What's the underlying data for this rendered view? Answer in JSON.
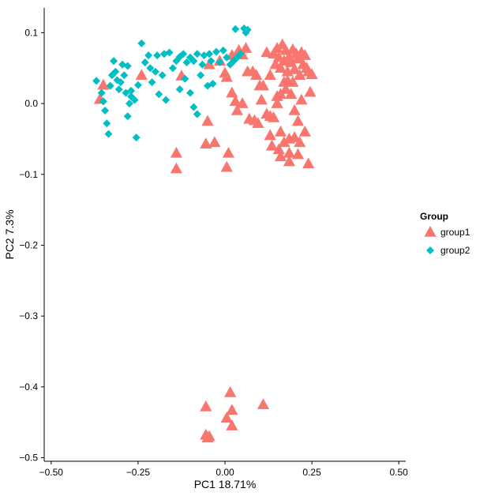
{
  "chart_data": {
    "type": "scatter",
    "xlabel": "PC1 18.71%",
    "ylabel": "PC2 7.3%",
    "xlim": [
      -0.52,
      0.52
    ],
    "ylim": [
      -0.505,
      0.135
    ],
    "x_ticks": [
      -0.5,
      -0.25,
      0.0,
      0.25,
      0.5
    ],
    "x_tick_labels": [
      "−0.50",
      "−0.25",
      "0.00",
      "0.25",
      "0.50"
    ],
    "y_ticks": [
      0.1,
      0.0,
      -0.1,
      -0.2,
      -0.3,
      -0.4,
      -0.5
    ],
    "y_tick_labels": [
      "0.1",
      "0.0",
      "−0.1",
      "−0.2",
      "−0.3",
      "−0.4",
      "−0.5"
    ],
    "grid": false,
    "legend": {
      "title": "Group",
      "position": "right",
      "entries": [
        {
          "label": "group1",
          "color": "#F8766D",
          "shape": "triangle"
        },
        {
          "label": "group2",
          "color": "#00BFC4",
          "shape": "diamond"
        }
      ]
    },
    "series": [
      {
        "name": "group1",
        "color": "#F8766D",
        "shape": "triangle",
        "points": [
          [
            -0.36,
            0.006
          ],
          [
            -0.35,
            0.026
          ],
          [
            -0.24,
            0.04
          ],
          [
            -0.125,
            0.039
          ],
          [
            -0.045,
            0.055
          ],
          [
            -0.015,
            0.06
          ],
          [
            0.0,
            0.043
          ],
          [
            0.005,
            0.037
          ],
          [
            0.02,
            0.068
          ],
          [
            0.04,
            0.075
          ],
          [
            0.05,
            0.069
          ],
          [
            0.06,
            0.078
          ],
          [
            0.065,
            0.045
          ],
          [
            0.08,
            0.045
          ],
          [
            0.09,
            0.04
          ],
          [
            0.1,
            0.025
          ],
          [
            0.105,
            0.005
          ],
          [
            0.11,
            0.025
          ],
          [
            0.12,
            0.072
          ],
          [
            0.13,
            0.04
          ],
          [
            0.14,
            0.07
          ],
          [
            0.145,
            0.055
          ],
          [
            0.15,
            0.078
          ],
          [
            0.155,
            0.065
          ],
          [
            0.16,
            0.05
          ],
          [
            0.165,
            0.083
          ],
          [
            0.17,
            0.06
          ],
          [
            0.175,
            0.075
          ],
          [
            0.18,
            0.045
          ],
          [
            0.185,
            0.066
          ],
          [
            0.19,
            0.058
          ],
          [
            0.195,
            0.076
          ],
          [
            0.2,
            0.048
          ],
          [
            0.205,
            0.07
          ],
          [
            0.21,
            0.063
          ],
          [
            0.215,
            0.04
          ],
          [
            0.22,
            0.072
          ],
          [
            0.225,
            0.055
          ],
          [
            0.23,
            0.068
          ],
          [
            0.235,
            0.05
          ],
          [
            0.24,
            0.045
          ],
          [
            0.25,
            0.041
          ],
          [
            0.245,
            0.016
          ],
          [
            0.18,
            0.032
          ],
          [
            0.195,
            0.03
          ],
          [
            0.02,
            0.015
          ],
          [
            0.03,
            0.003
          ],
          [
            0.035,
            -0.01
          ],
          [
            0.05,
            0.0
          ],
          [
            0.07,
            -0.022
          ],
          [
            0.085,
            -0.024
          ],
          [
            0.095,
            -0.028
          ],
          [
            0.12,
            -0.015
          ],
          [
            0.13,
            -0.018
          ],
          [
            0.14,
            -0.02
          ],
          [
            0.15,
            0.01
          ],
          [
            0.16,
            0.013
          ],
          [
            0.175,
            0.02
          ],
          [
            0.19,
            0.013
          ],
          [
            0.2,
            -0.01
          ],
          [
            0.21,
            -0.025
          ],
          [
            0.22,
            0.005
          ],
          [
            0.185,
            -0.05
          ],
          [
            0.16,
            -0.04
          ],
          [
            0.13,
            -0.045
          ],
          [
            0.135,
            -0.06
          ],
          [
            0.155,
            -0.065
          ],
          [
            0.17,
            -0.055
          ],
          [
            0.185,
            -0.07
          ],
          [
            0.2,
            -0.048
          ],
          [
            0.215,
            -0.055
          ],
          [
            0.23,
            -0.04
          ],
          [
            0.16,
            -0.075
          ],
          [
            0.185,
            -0.082
          ],
          [
            0.21,
            -0.072
          ],
          [
            0.24,
            -0.085
          ],
          [
            0.15,
            0.0
          ],
          [
            0.17,
            0.03
          ],
          [
            -0.05,
            -0.025
          ],
          [
            -0.03,
            -0.055
          ],
          [
            -0.055,
            -0.057
          ],
          [
            0.01,
            -0.07
          ],
          [
            0.005,
            -0.09
          ],
          [
            -0.14,
            -0.07
          ],
          [
            -0.14,
            -0.092
          ],
          [
            0.015,
            -0.408
          ],
          [
            -0.055,
            -0.428
          ],
          [
            0.02,
            -0.433
          ],
          [
            0.11,
            -0.425
          ],
          [
            0.005,
            -0.444
          ],
          [
            0.02,
            -0.455
          ],
          [
            -0.055,
            -0.468
          ],
          [
            -0.045,
            -0.47
          ],
          [
            -0.05,
            -0.472
          ]
        ]
      },
      {
        "name": "group2",
        "color": "#00BFC4",
        "shape": "diamond",
        "points": [
          [
            -0.37,
            0.032
          ],
          [
            -0.355,
            0.015
          ],
          [
            -0.35,
            0.003
          ],
          [
            -0.345,
            -0.01
          ],
          [
            -0.34,
            -0.028
          ],
          [
            -0.335,
            -0.043
          ],
          [
            -0.33,
            0.025
          ],
          [
            -0.325,
            0.04
          ],
          [
            -0.32,
            0.06
          ],
          [
            -0.315,
            0.045
          ],
          [
            -0.31,
            0.033
          ],
          [
            -0.305,
            0.02
          ],
          [
            -0.3,
            0.03
          ],
          [
            -0.295,
            0.055
          ],
          [
            -0.29,
            0.04
          ],
          [
            -0.285,
            0.015
          ],
          [
            -0.28,
            0.053
          ],
          [
            -0.275,
            0.0
          ],
          [
            -0.27,
            0.01
          ],
          [
            -0.26,
            0.005
          ],
          [
            -0.255,
            -0.048
          ],
          [
            -0.25,
            0.026
          ],
          [
            -0.24,
            0.085
          ],
          [
            -0.23,
            0.058
          ],
          [
            -0.22,
            0.068
          ],
          [
            -0.215,
            0.05
          ],
          [
            -0.21,
            0.03
          ],
          [
            -0.2,
            0.045
          ],
          [
            -0.195,
            0.068
          ],
          [
            -0.19,
            0.013
          ],
          [
            -0.18,
            0.04
          ],
          [
            -0.175,
            0.07
          ],
          [
            -0.17,
            0.005
          ],
          [
            -0.16,
            0.072
          ],
          [
            -0.15,
            0.05
          ],
          [
            -0.14,
            0.06
          ],
          [
            -0.13,
            0.066
          ],
          [
            -0.12,
            0.07
          ],
          [
            -0.115,
            0.035
          ],
          [
            -0.11,
            0.058
          ],
          [
            -0.1,
            0.065
          ],
          [
            -0.09,
            0.06
          ],
          [
            -0.08,
            0.07
          ],
          [
            -0.07,
            0.04
          ],
          [
            -0.065,
            0.055
          ],
          [
            -0.06,
            0.068
          ],
          [
            -0.05,
            0.025
          ],
          [
            -0.045,
            0.07
          ],
          [
            -0.04,
            0.06
          ],
          [
            -0.035,
            0.028
          ],
          [
            -0.025,
            0.073
          ],
          [
            -0.015,
            0.058
          ],
          [
            -0.005,
            0.075
          ],
          [
            0.005,
            0.065
          ],
          [
            0.015,
            0.055
          ],
          [
            0.025,
            0.06
          ],
          [
            0.035,
            0.065
          ],
          [
            0.045,
            0.07
          ],
          [
            0.03,
            0.105
          ],
          [
            0.055,
            0.106
          ],
          [
            0.06,
            0.1
          ],
          [
            0.065,
            0.104
          ],
          [
            -0.09,
            -0.005
          ],
          [
            -0.08,
            -0.015
          ],
          [
            -0.1,
            0.015
          ],
          [
            -0.13,
            0.02
          ],
          [
            -0.28,
            -0.018
          ],
          [
            -0.27,
            0.018
          ]
        ]
      }
    ]
  }
}
